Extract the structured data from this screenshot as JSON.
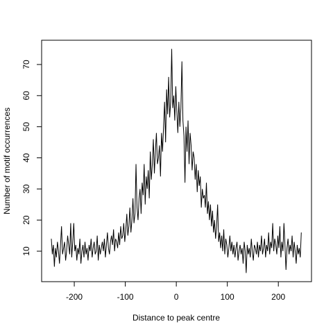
{
  "chart_data": {
    "type": "line",
    "xlabel": "Distance to peak centre",
    "ylabel": "Number of motif occurrences",
    "xlim": [
      -264,
      265
    ],
    "ylim": [
      0.2,
      77.8
    ],
    "xticks": [
      -200,
      -100,
      0,
      100,
      200
    ],
    "yticks": [
      10,
      20,
      30,
      40,
      50,
      60,
      70
    ],
    "x": [
      -245,
      -243,
      -241,
      -239,
      -237,
      -235,
      -233,
      -231,
      -229,
      -227,
      -225,
      -223,
      -221,
      -219,
      -217,
      -215,
      -213,
      -211,
      -209,
      -207,
      -205,
      -203,
      -201,
      -199,
      -197,
      -195,
      -193,
      -191,
      -189,
      -187,
      -185,
      -183,
      -181,
      -179,
      -177,
      -175,
      -173,
      -171,
      -169,
      -167,
      -165,
      -163,
      -161,
      -159,
      -157,
      -155,
      -153,
      -151,
      -149,
      -147,
      -145,
      -143,
      -141,
      -139,
      -137,
      -135,
      -133,
      -131,
      -129,
      -127,
      -125,
      -123,
      -121,
      -119,
      -117,
      -115,
      -113,
      -111,
      -109,
      -107,
      -105,
      -103,
      -101,
      -99,
      -97,
      -95,
      -93,
      -91,
      -89,
      -87,
      -85,
      -83,
      -81,
      -79,
      -77,
      -75,
      -73,
      -71,
      -69,
      -67,
      -65,
      -63,
      -61,
      -59,
      -57,
      -55,
      -53,
      -51,
      -49,
      -47,
      -45,
      -43,
      -41,
      -39,
      -37,
      -35,
      -33,
      -31,
      -29,
      -27,
      -25,
      -23,
      -21,
      -19,
      -17,
      -15,
      -13,
      -11,
      -9,
      -7,
      -5,
      -3,
      -1,
      1,
      3,
      5,
      7,
      9,
      11,
      13,
      15,
      17,
      19,
      21,
      23,
      25,
      27,
      29,
      31,
      33,
      35,
      37,
      39,
      41,
      43,
      45,
      47,
      49,
      51,
      53,
      55,
      57,
      59,
      61,
      63,
      65,
      67,
      69,
      71,
      73,
      75,
      77,
      79,
      81,
      83,
      85,
      87,
      89,
      91,
      93,
      95,
      97,
      99,
      101,
      103,
      105,
      107,
      109,
      111,
      113,
      115,
      117,
      119,
      121,
      123,
      125,
      127,
      129,
      131,
      133,
      135,
      137,
      139,
      141,
      143,
      145,
      147,
      149,
      151,
      153,
      155,
      157,
      159,
      161,
      163,
      165,
      167,
      169,
      171,
      173,
      175,
      177,
      179,
      181,
      183,
      185,
      187,
      189,
      191,
      193,
      195,
      197,
      199,
      201,
      203,
      205,
      207,
      209,
      211,
      213,
      215,
      217,
      219,
      221,
      223,
      225,
      227,
      229,
      231,
      233,
      235,
      237,
      239,
      241,
      243,
      245
    ],
    "series": [
      {
        "color": "#000000",
        "values": [
          14,
          9,
          12,
          5,
          11,
          8,
          13,
          10,
          6,
          12,
          18,
          9,
          11,
          13,
          7,
          10,
          15,
          12,
          9,
          19,
          8,
          13,
          19,
          10,
          12,
          7,
          11,
          9,
          14,
          6,
          10,
          12,
          8,
          13,
          9,
          11,
          7,
          12,
          10,
          14,
          8,
          11,
          13,
          9,
          10,
          15,
          7,
          12,
          9,
          11,
          13,
          10,
          14,
          8,
          12,
          16,
          11,
          9,
          13,
          15,
          12,
          17,
          10,
          14,
          13,
          11,
          16,
          12,
          18,
          14,
          15,
          19,
          13,
          17,
          22,
          15,
          18,
          24,
          16,
          20,
          27,
          19,
          22,
          38,
          24,
          20,
          27,
          30,
          22,
          32,
          28,
          38,
          25,
          34,
          30,
          36,
          27,
          42,
          33,
          38,
          46,
          35,
          42,
          48,
          38,
          40,
          44,
          34,
          48,
          42,
          50,
          58,
          45,
          62,
          54,
          66,
          53,
          58,
          75,
          56,
          60,
          52,
          63,
          55,
          48,
          58,
          50,
          56,
          71,
          52,
          47,
          32,
          50,
          42,
          52,
          38,
          48,
          44,
          36,
          42,
          40,
          33,
          38,
          29,
          36,
          31,
          34,
          24,
          30,
          27,
          28,
          24,
          32,
          22,
          26,
          20,
          25,
          18,
          23,
          16,
          20,
          14,
          18,
          25,
          13,
          16,
          11,
          15,
          10,
          17,
          9,
          14,
          12,
          8,
          11,
          15,
          10,
          13,
          9,
          12,
          8,
          11,
          13,
          7,
          10,
          12,
          9,
          11,
          6,
          13,
          10,
          3,
          12,
          9,
          11,
          8,
          14,
          10,
          7,
          12,
          11,
          9,
          13,
          8,
          12,
          10,
          15,
          9,
          11,
          14,
          8,
          12,
          10,
          16,
          9,
          13,
          11,
          19,
          10,
          14,
          12,
          9,
          15,
          11,
          18,
          8,
          13,
          10,
          19,
          12,
          4,
          11,
          14,
          9,
          12,
          10,
          15,
          8,
          13,
          10,
          6,
          12,
          9,
          11,
          8,
          16
        ]
      }
    ]
  }
}
